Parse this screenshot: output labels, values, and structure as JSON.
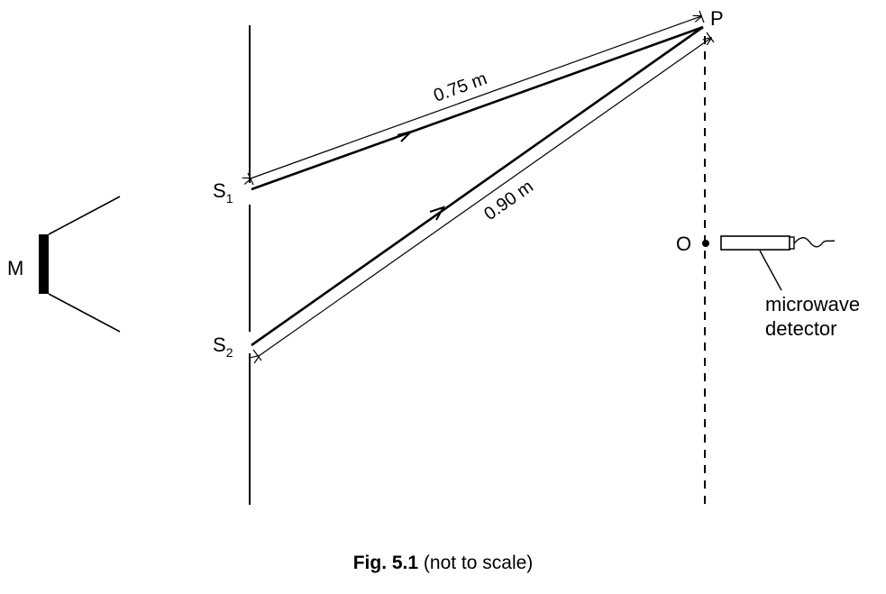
{
  "figure": {
    "labels": {
      "source": "M",
      "slit1_letter": "S",
      "slit1_sub": "1",
      "slit2_letter": "S",
      "slit2_sub": "2",
      "point_p": "P",
      "point_o": "O",
      "detector_line1": "microwave",
      "detector_line2": "detector"
    },
    "distances": {
      "s1_to_p": "0.75 m",
      "s2_to_p": "0.90 m"
    },
    "caption": {
      "bold": "Fig. 5.1",
      "rest": " (not to scale)"
    }
  }
}
